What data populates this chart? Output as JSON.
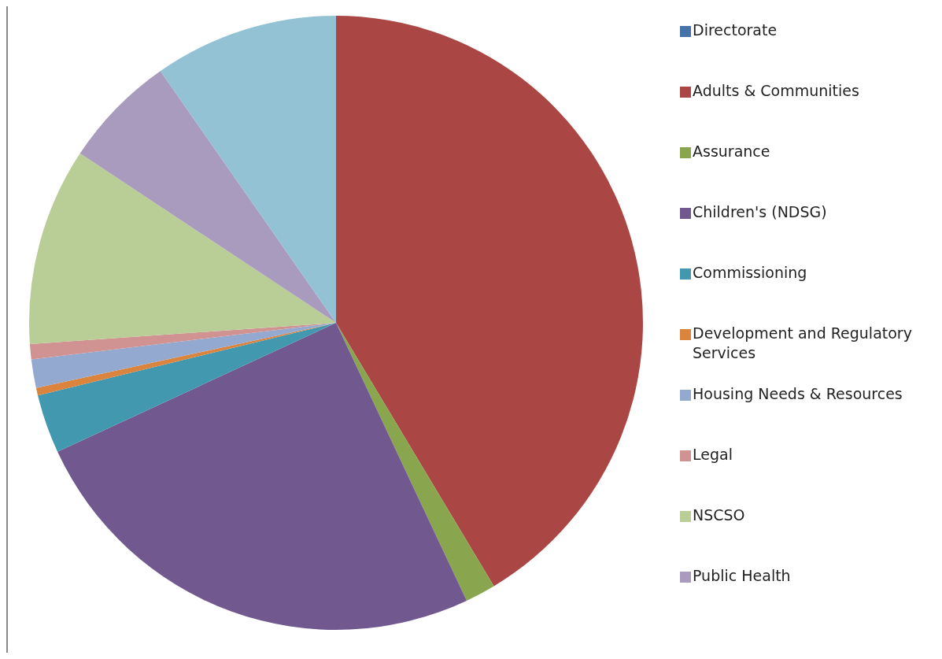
{
  "chart_data": {
    "type": "pie",
    "categories": [
      "Directorate",
      "Adults & Communities",
      "Assurance",
      "Children's (NDSG)",
      "Commissioning",
      "Development and Regulatory Services",
      "Housing Needs & Resources",
      "Legal",
      "NSCSO",
      "Public Health",
      null
    ],
    "values": [
      0,
      41.4,
      1.6,
      25.1,
      3.1,
      0.4,
      1.5,
      0.8,
      10.4,
      6.0,
      9.7
    ],
    "colors": [
      "#4572a7",
      "#aa4643",
      "#89a54e",
      "#71588f",
      "#4198af",
      "#db843d",
      "#93a9cf",
      "#d19392",
      "#b9cd96",
      "#a99bbd",
      "#92c2d4"
    ],
    "legend": "right"
  }
}
